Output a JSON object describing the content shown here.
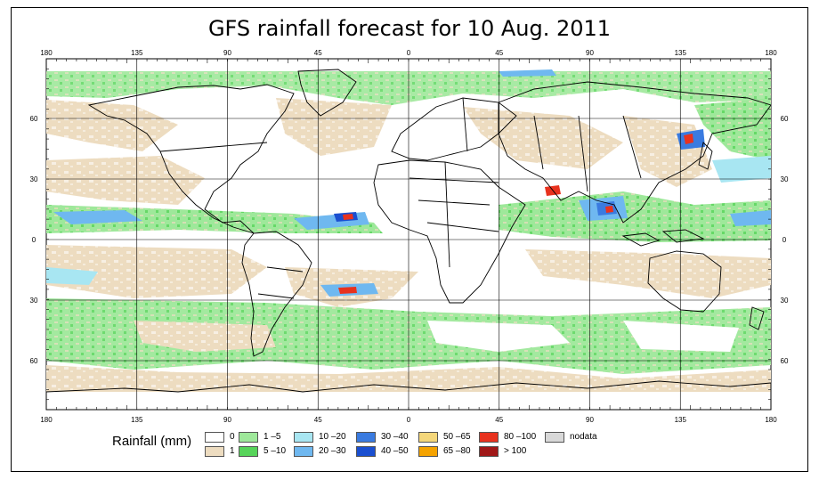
{
  "title": "GFS rainfall forecast for 10 Aug. 2011",
  "lon_labels": [
    "180",
    "135",
    "90",
    "45",
    "0",
    "45",
    "90",
    "135",
    "180"
  ],
  "lat_labels_left": [
    "60",
    "30",
    "0",
    "30",
    "60"
  ],
  "lat_labels_right": [
    "60",
    "30",
    "0",
    "30",
    "60"
  ],
  "legend": {
    "title": "Rainfall (mm)",
    "items": [
      {
        "label": "0",
        "color": "#ffffff"
      },
      {
        "label": "1",
        "color": "#eddcc0"
      },
      {
        "label": "1 –5",
        "color": "#9ee89a"
      },
      {
        "label": "5 –10",
        "color": "#57d45a"
      },
      {
        "label": "10 –20",
        "color": "#a8e6f2"
      },
      {
        "label": "20 –30",
        "color": "#6fb8f0"
      },
      {
        "label": "30 –40",
        "color": "#3a7be0"
      },
      {
        "label": "40 –50",
        "color": "#1a4fd0"
      },
      {
        "label": "50 –65",
        "color": "#f5d77a"
      },
      {
        "label": "65 –80",
        "color": "#f5a300"
      },
      {
        "label": "80 –100",
        "color": "#e8321e"
      },
      {
        "label": "> 100",
        "color": "#a01818"
      },
      {
        "label": "nodata",
        "color": "#d8d8d8"
      }
    ]
  }
}
